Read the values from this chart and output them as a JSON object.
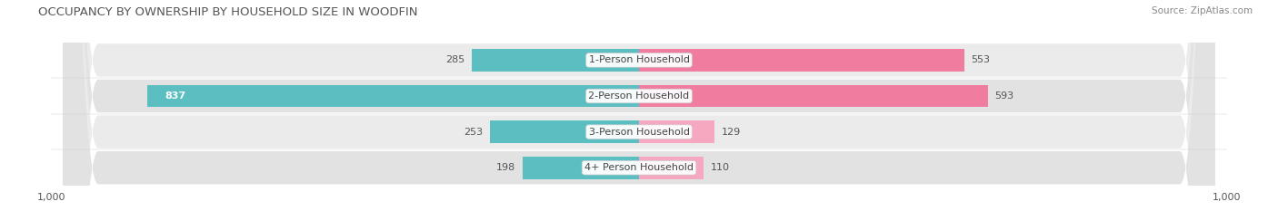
{
  "title": "OCCUPANCY BY OWNERSHIP BY HOUSEHOLD SIZE IN WOODFIN",
  "source": "Source: ZipAtlas.com",
  "categories": [
    "1-Person Household",
    "2-Person Household",
    "3-Person Household",
    "4+ Person Household"
  ],
  "owner_values": [
    285,
    837,
    253,
    198
  ],
  "renter_values": [
    553,
    593,
    129,
    110
  ],
  "owner_color": "#5bbfc2",
  "renter_color": "#f07ca0",
  "renter_color_light": "#f5a8c0",
  "axis_max": 1000,
  "fig_bg": "#ffffff",
  "row_bg_odd": "#ebebeb",
  "row_bg_even": "#e2e2e2",
  "title_fontsize": 9.5,
  "source_fontsize": 7.5,
  "label_fontsize": 8,
  "tick_fontsize": 8,
  "legend_fontsize": 8
}
